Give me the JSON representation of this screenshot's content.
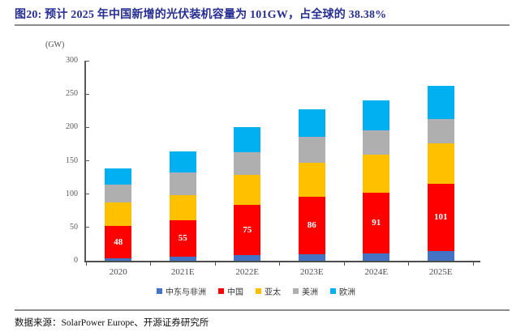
{
  "header": {
    "title": "图20: 预计 2025 年中国新增的光伏装机容量为 101GW，占全球的 38.38%",
    "title_color": "#272E93"
  },
  "footer": {
    "source": "数据来源：SolarPower Europe、开源证券研究所"
  },
  "chart_data": {
    "type": "bar",
    "stacked": true,
    "unit_label": "(GW)",
    "categories": [
      "2020",
      "2021E",
      "2022E",
      "2023E",
      "2024E",
      "2025E"
    ],
    "series": [
      {
        "name": "中东与非洲",
        "color": "#4472C4",
        "values": [
          4,
          6,
          9,
          10,
          11,
          15
        ]
      },
      {
        "name": "中国",
        "color": "#FF0000",
        "values": [
          48,
          55,
          75,
          86,
          91,
          101
        ],
        "show_labels": true,
        "label_color": "#FFFFFF"
      },
      {
        "name": "亚太",
        "color": "#FFC000",
        "values": [
          36,
          38,
          45,
          51,
          57,
          60
        ]
      },
      {
        "name": "美洲",
        "color": "#AFAFAF",
        "values": [
          26,
          33,
          34,
          39,
          36,
          36
        ]
      },
      {
        "name": "欧洲",
        "color": "#00B0F0",
        "values": [
          24,
          32,
          38,
          41,
          45,
          51
        ]
      }
    ],
    "totals_estimated": [
      138,
      164,
      201,
      227,
      240,
      263
    ],
    "ylim": [
      0,
      300
    ],
    "yticks": [
      0,
      50,
      100,
      150,
      200,
      250,
      300
    ],
    "grid": false,
    "legend_position": "bottom"
  }
}
